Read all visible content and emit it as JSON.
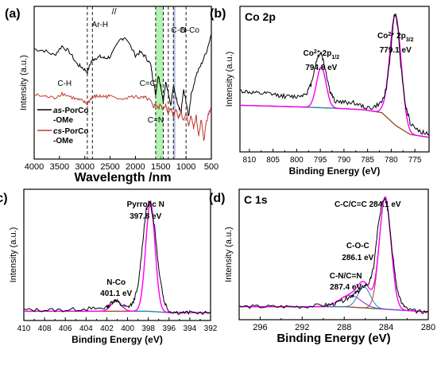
{
  "chart_data": [
    {
      "panel": "(a)",
      "type": "line",
      "xlabel": "Wavelength /nm",
      "ylabel": "Intensity (a.u.)",
      "xlim": [
        4000,
        500
      ],
      "xticks": [
        "4000",
        "3500",
        "3000",
        "2500",
        "2000",
        "1500",
        "1000",
        "500"
      ],
      "axis_break": "//",
      "series": [
        {
          "name_parts": [
            "as",
            "-PorCo",
            "-OMe"
          ],
          "color": "#000000",
          "x": [
            4000,
            3800,
            3600,
            3450,
            3300,
            3150,
            3050,
            2950,
            2870,
            2800,
            2700,
            2600,
            2500,
            2300,
            2200,
            2000,
            1900,
            1800,
            1700,
            1650,
            1600,
            1550,
            1500,
            1450,
            1400,
            1350,
            1300,
            1250,
            1200,
            1150,
            1100,
            1050,
            1000,
            950,
            900,
            800,
            700,
            600,
            500
          ],
          "y": [
            0.72,
            0.71,
            0.68,
            0.74,
            0.7,
            0.62,
            0.6,
            0.57,
            0.64,
            0.66,
            0.67,
            0.66,
            0.67,
            0.78,
            0.8,
            0.68,
            0.7,
            0.67,
            0.62,
            0.52,
            0.42,
            0.55,
            0.48,
            0.38,
            0.5,
            0.44,
            0.35,
            0.48,
            0.4,
            0.34,
            0.3,
            0.45,
            0.38,
            0.28,
            0.42,
            0.55,
            0.62,
            0.7,
            0.82
          ]
        },
        {
          "name_parts": [
            "cs",
            "-PorCo",
            "-OMe"
          ],
          "color": "#c0392b",
          "x": [
            4000,
            3800,
            3600,
            3450,
            3300,
            3150,
            3050,
            2950,
            2870,
            2800,
            2700,
            2600,
            2500,
            2200,
            2000,
            1900,
            1800,
            1700,
            1650,
            1600,
            1550,
            1500,
            1450,
            1400,
            1350,
            1300,
            1250,
            1200,
            1150,
            1100,
            1050,
            1000,
            950,
            900,
            850,
            800,
            750,
            700,
            650,
            600,
            550,
            500
          ],
          "y": [
            0.42,
            0.41,
            0.4,
            0.43,
            0.41,
            0.39,
            0.38,
            0.36,
            0.4,
            0.41,
            0.41,
            0.41,
            0.41,
            0.4,
            0.41,
            0.4,
            0.4,
            0.38,
            0.34,
            0.36,
            0.33,
            0.36,
            0.32,
            0.35,
            0.3,
            0.34,
            0.28,
            0.33,
            0.27,
            0.31,
            0.25,
            0.3,
            0.22,
            0.29,
            0.2,
            0.28,
            0.15,
            0.26,
            0.12,
            0.24,
            0.3,
            0.34
          ]
        }
      ],
      "vlines": [
        2950,
        2850,
        1600,
        1450,
        1350,
        1250,
        1000
      ],
      "bands": [
        {
          "from": 1600,
          "to": 1450,
          "color": "#90ee90"
        },
        {
          "from": 1250,
          "to": 1210,
          "color": "#9aa5d8"
        }
      ],
      "annotations": [
        "Ar-H",
        "C-H",
        "C=C",
        "C-O",
        "N-Co",
        "C=N"
      ]
    },
    {
      "panel": "(b)",
      "type": "line",
      "title": "Co 2p",
      "xlabel": "Binding Energy (eV)",
      "ylabel": "Intensity (a.u.)",
      "xlim": [
        812,
        772
      ],
      "xticks": [
        "810",
        "805",
        "800",
        "795",
        "790",
        "785",
        "780",
        "775"
      ],
      "peaks": [
        {
          "label_main": "Co",
          "label_sup": "2+",
          "label_sub_pre": "2p",
          "label_sub": "1/2",
          "value": "794.8 eV",
          "x": 794.8
        },
        {
          "label_main": "Co",
          "label_sup": "2+",
          "label_sub_pre": "2p",
          "label_sub": "3/2",
          "value": "779.1 eV",
          "x": 779.1
        }
      ],
      "raw": {
        "x": [
          812,
          810,
          808,
          806,
          804,
          802,
          800,
          798,
          797,
          796,
          795.5,
          794.8,
          794,
          793,
          792,
          790,
          788,
          786,
          784,
          782,
          781,
          780,
          779.5,
          779.1,
          778.6,
          778,
          777,
          776,
          774,
          772
        ],
        "y": [
          0.42,
          0.41,
          0.4,
          0.4,
          0.39,
          0.38,
          0.38,
          0.4,
          0.46,
          0.6,
          0.66,
          0.68,
          0.58,
          0.42,
          0.35,
          0.34,
          0.34,
          0.31,
          0.3,
          0.34,
          0.44,
          0.72,
          0.92,
          0.95,
          0.86,
          0.6,
          0.32,
          0.2,
          0.14,
          0.12
        ]
      },
      "background": {
        "x": [
          812,
          800,
          792,
          786,
          782,
          779,
          776,
          772
        ],
        "y": [
          0.32,
          0.31,
          0.3,
          0.29,
          0.27,
          0.18,
          0.12,
          0.1
        ]
      }
    },
    {
      "panel": "(c)",
      "type": "line",
      "xlabel": "Binding Energy (eV)",
      "ylabel": "Intensity (a.u.)",
      "xlim": [
        410,
        392
      ],
      "xticks": [
        "410",
        "408",
        "406",
        "404",
        "402",
        "400",
        "398",
        "396",
        "394",
        "392"
      ],
      "peaks": [
        {
          "label": "Pyrrolic N",
          "value": "397.8 eV",
          "x": 397.8
        },
        {
          "label": "N-Co",
          "value": "401.1 eV",
          "x": 401.1
        }
      ],
      "raw": {
        "x": [
          410,
          408,
          406,
          404,
          403,
          402,
          401.5,
          401.1,
          400.7,
          400,
          399.5,
          399,
          398.6,
          398.2,
          397.8,
          397.4,
          397,
          396.5,
          396,
          395,
          394,
          392
        ],
        "y": [
          0.08,
          0.08,
          0.08,
          0.09,
          0.09,
          0.1,
          0.14,
          0.16,
          0.12,
          0.1,
          0.13,
          0.25,
          0.55,
          0.85,
          0.9,
          0.72,
          0.4,
          0.15,
          0.07,
          0.06,
          0.06,
          0.06
        ]
      },
      "background": {
        "x": [
          410,
          402,
          400,
          398,
          396,
          392
        ],
        "y": [
          0.07,
          0.07,
          0.07,
          0.07,
          0.06,
          0.06
        ]
      }
    },
    {
      "panel": "(d)",
      "type": "line",
      "title": "C 1s",
      "xlabel": "Binding Energy (eV)",
      "ylabel": "Intensity (a.u.)",
      "xlim": [
        298,
        280
      ],
      "xticks": [
        "296",
        "292",
        "288",
        "284",
        "280"
      ],
      "peaks": [
        {
          "label": "C-C/C=C",
          "value": "284.1 eV",
          "x": 284.1
        },
        {
          "label": "C-O-C",
          "value": "286.1 eV",
          "x": 286.1
        },
        {
          "label": "C-N/C=N",
          "value": "287.4 eV",
          "x": 287.4
        }
      ],
      "raw": {
        "x": [
          298,
          296,
          294,
          292,
          290,
          289,
          288,
          287.4,
          287,
          286.6,
          286.1,
          285.6,
          285.2,
          284.8,
          284.4,
          284.1,
          283.8,
          283.4,
          283,
          282.5,
          282,
          281,
          280
        ],
        "y": [
          0.1,
          0.1,
          0.1,
          0.1,
          0.11,
          0.12,
          0.15,
          0.18,
          0.2,
          0.22,
          0.26,
          0.28,
          0.4,
          0.7,
          0.9,
          0.94,
          0.82,
          0.5,
          0.25,
          0.12,
          0.08,
          0.06,
          0.06
        ]
      },
      "background": {
        "x": [
          298,
          290,
          288,
          286,
          284,
          282,
          280
        ],
        "y": [
          0.1,
          0.1,
          0.1,
          0.09,
          0.08,
          0.07,
          0.06
        ]
      }
    }
  ],
  "panel_labels": {
    "a": "(a)",
    "b": "(b)",
    "c": "(c)",
    "d": "(d)"
  },
  "colors": {
    "raw": "#000000",
    "fit": "#ff00ff",
    "background": "#8a2be2",
    "baseline": "#228b22",
    "peak1": "#c0392b",
    "peak2": "#2c7fb8",
    "green_band": "#90ee90",
    "blue_band": "#9aa5d8"
  }
}
